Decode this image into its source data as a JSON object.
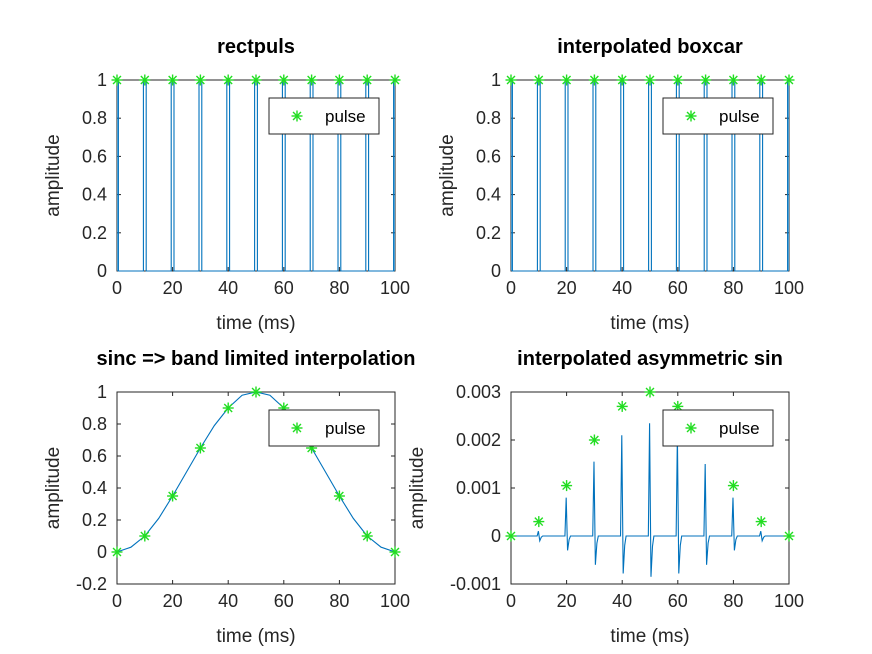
{
  "colors": {
    "signal": "#0072bd",
    "marker": "#22dd22",
    "axes": "#262626"
  },
  "chart_data": [
    {
      "type": "line",
      "title": "rectpuls",
      "xlabel": "time (ms)",
      "ylabel": "amplitude",
      "xlim": [
        0,
        100
      ],
      "ylim": [
        0,
        1
      ],
      "xticks": [
        0,
        20,
        40,
        60,
        80,
        100
      ],
      "yticks": [
        0,
        0.2,
        0.4,
        0.6,
        0.8,
        1
      ],
      "ytick_labels": [
        "0",
        "0.2",
        "0.4",
        "0.6",
        "0.8",
        "1"
      ],
      "legend": {
        "entries": [
          "pulse"
        ],
        "position": "top-right"
      },
      "series": [
        {
          "kind": "line",
          "shape": "pulse_train",
          "pulse_centers": [
            0,
            10,
            20,
            30,
            40,
            50,
            60,
            70,
            80,
            90,
            100
          ],
          "pulse_width": 1,
          "amplitudes": [
            1,
            1,
            1,
            1,
            1,
            1,
            1,
            1,
            1,
            1,
            1
          ]
        },
        {
          "name": "pulse",
          "kind": "marker",
          "x": [
            0,
            10,
            20,
            30,
            40,
            50,
            60,
            70,
            80,
            90,
            100
          ],
          "y": [
            1,
            1,
            1,
            1,
            1,
            1,
            1,
            1,
            1,
            1,
            1
          ]
        }
      ]
    },
    {
      "type": "line",
      "title": "interpolated boxcar",
      "xlabel": "time (ms)",
      "ylabel": "amplitude",
      "xlim": [
        0,
        100
      ],
      "ylim": [
        0,
        1
      ],
      "xticks": [
        0,
        20,
        40,
        60,
        80,
        100
      ],
      "yticks": [
        0,
        0.2,
        0.4,
        0.6,
        0.8,
        1
      ],
      "ytick_labels": [
        "0",
        "0.2",
        "0.4",
        "0.6",
        "0.8",
        "1"
      ],
      "legend": {
        "entries": [
          "pulse"
        ],
        "position": "top-right"
      },
      "series": [
        {
          "kind": "line",
          "shape": "pulse_train",
          "pulse_centers": [
            0,
            10,
            20,
            30,
            40,
            50,
            60,
            70,
            80,
            90,
            100
          ],
          "pulse_width": 1,
          "amplitudes": [
            1,
            1,
            1,
            1,
            1,
            1,
            1,
            1,
            1,
            1,
            1
          ]
        },
        {
          "name": "pulse",
          "kind": "marker",
          "x": [
            0,
            10,
            20,
            30,
            40,
            50,
            60,
            70,
            80,
            90,
            100
          ],
          "y": [
            1,
            1,
            1,
            1,
            1,
            1,
            1,
            1,
            1,
            1,
            1
          ]
        }
      ]
    },
    {
      "type": "line",
      "title": "sinc => band limited interpolation",
      "xlabel": "time (ms)",
      "ylabel": "amplitude",
      "xlim": [
        0,
        100
      ],
      "ylim": [
        -0.2,
        1
      ],
      "xticks": [
        0,
        20,
        40,
        60,
        80,
        100
      ],
      "yticks": [
        -0.2,
        0,
        0.2,
        0.4,
        0.6,
        0.8,
        1
      ],
      "ytick_labels": [
        "-0.2",
        "0",
        "0.2",
        "0.4",
        "0.6",
        "0.8",
        "1"
      ],
      "legend": {
        "entries": [
          "pulse"
        ],
        "position": "top-right"
      },
      "series": [
        {
          "kind": "line",
          "shape": "smooth",
          "x": [
            0,
            5,
            10,
            15,
            20,
            25,
            30,
            35,
            40,
            45,
            50,
            55,
            60,
            65,
            70,
            75,
            80,
            85,
            90,
            95,
            100
          ],
          "y": [
            0,
            0.03,
            0.1,
            0.21,
            0.35,
            0.5,
            0.65,
            0.79,
            0.9,
            0.98,
            1,
            0.98,
            0.9,
            0.79,
            0.65,
            0.5,
            0.35,
            0.21,
            0.1,
            0.03,
            0
          ]
        },
        {
          "name": "pulse",
          "kind": "marker",
          "x": [
            0,
            10,
            20,
            30,
            40,
            50,
            60,
            70,
            80,
            90,
            100
          ],
          "y": [
            0,
            0.1,
            0.35,
            0.65,
            0.9,
            1,
            0.9,
            0.65,
            0.35,
            0.1,
            0
          ]
        }
      ]
    },
    {
      "type": "line",
      "title": "interpolated asymmetric sin",
      "xlabel": "time (ms)",
      "ylabel": "amplitude",
      "xlim": [
        0,
        100
      ],
      "ylim": [
        -0.001,
        0.003
      ],
      "xticks": [
        0,
        20,
        40,
        60,
        80,
        100
      ],
      "yticks": [
        -0.001,
        0,
        0.001,
        0.002,
        0.003
      ],
      "ytick_labels": [
        "-0.001",
        "0",
        "0.001",
        "0.002",
        "0.003"
      ],
      "legend": {
        "entries": [
          "pulse"
        ],
        "position": "top-right"
      },
      "series": [
        {
          "kind": "line",
          "shape": "burst_train",
          "pulse_centers": [
            0,
            10,
            20,
            30,
            40,
            50,
            60,
            70,
            80,
            90,
            100
          ],
          "peak_values": [
            0,
            0.0001,
            0.0008,
            0.00155,
            0.0021,
            0.00235,
            0.0021,
            0.0015,
            0.0008,
            0.0001,
            0
          ],
          "trough_values": [
            0,
            -0.0001,
            -0.0003,
            -0.0006,
            -0.00078,
            -0.00085,
            -0.00078,
            -0.0006,
            -0.0003,
            -0.0001,
            0
          ]
        },
        {
          "name": "pulse",
          "kind": "marker",
          "x": [
            0,
            10,
            20,
            30,
            40,
            50,
            60,
            70,
            80,
            90,
            100
          ],
          "y": [
            0,
            0.0003,
            0.00105,
            0.002,
            0.0027,
            0.003,
            0.0027,
            0.002,
            0.00105,
            0.0003,
            0
          ]
        }
      ]
    }
  ]
}
